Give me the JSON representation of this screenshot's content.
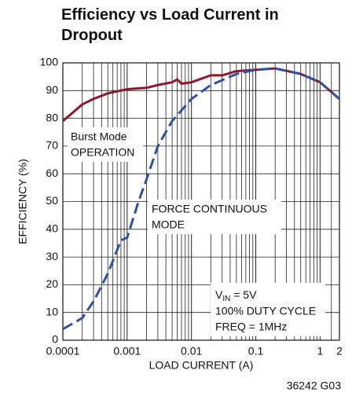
{
  "chart_data": {
    "type": "line",
    "title": "Efficiency vs Load Current in Dropout",
    "xlabel": "LOAD CURRENT (A)",
    "ylabel": "EFFICIENCY (%)",
    "xscale": "log",
    "grid": true,
    "xlim": [
      0.0001,
      2
    ],
    "ylim": [
      0,
      100
    ],
    "xticks": [
      0.0001,
      0.001,
      0.01,
      0.1,
      1,
      2
    ],
    "xminorticks": [
      0.0002,
      0.0003,
      0.0004,
      0.0005,
      0.0006,
      0.0007,
      0.0008,
      0.0009,
      0.002,
      0.003,
      0.004,
      0.005,
      0.006,
      0.007,
      0.008,
      0.009,
      0.02,
      0.03,
      0.04,
      0.05,
      0.06,
      0.07,
      0.08,
      0.09,
      0.2,
      0.3,
      0.4,
      0.5,
      0.6,
      0.7,
      0.8,
      0.9,
      1.5
    ],
    "yticks": [
      0,
      10,
      20,
      30,
      40,
      50,
      60,
      70,
      80,
      90,
      100
    ],
    "series": [
      {
        "name": "Burst Mode OPERATION",
        "color": "#8b1a2f",
        "dash": false,
        "x": [
          0.0001,
          0.0002,
          0.0003,
          0.0005,
          0.001,
          0.002,
          0.003,
          0.005,
          0.006,
          0.007,
          0.01,
          0.02,
          0.03,
          0.05,
          0.1,
          0.2,
          0.5,
          1,
          2
        ],
        "values": [
          79,
          85,
          87,
          89,
          90.5,
          91,
          92,
          93,
          94,
          92.5,
          93,
          95.5,
          95.5,
          97,
          97.5,
          98,
          96,
          93,
          87
        ]
      },
      {
        "name": "FORCE CONTINUOUS MODE",
        "color": "#3050a0",
        "dash": true,
        "x": [
          0.0001,
          0.0002,
          0.0003,
          0.0005,
          0.0008,
          0.001,
          0.0015,
          0.002,
          0.003,
          0.005,
          0.01,
          0.02,
          0.05,
          0.1,
          0.2,
          0.5,
          1,
          2
        ],
        "values": [
          4,
          8,
          14,
          24,
          36,
          37,
          50,
          58,
          70,
          79,
          87,
          92,
          96,
          97.5,
          98,
          96,
          93,
          87
        ]
      }
    ],
    "annotations": {
      "burst": [
        "Burst Mode",
        "OPERATION"
      ],
      "force": [
        "FORCE CONTINUOUS",
        "MODE"
      ],
      "vin": {
        "main": "V",
        "sub": "IN",
        "rest": " = 5V"
      },
      "duty": "100% DUTY CYCLE",
      "freq": "FREQ = 1MHz",
      "code": "36242 G03"
    }
  }
}
